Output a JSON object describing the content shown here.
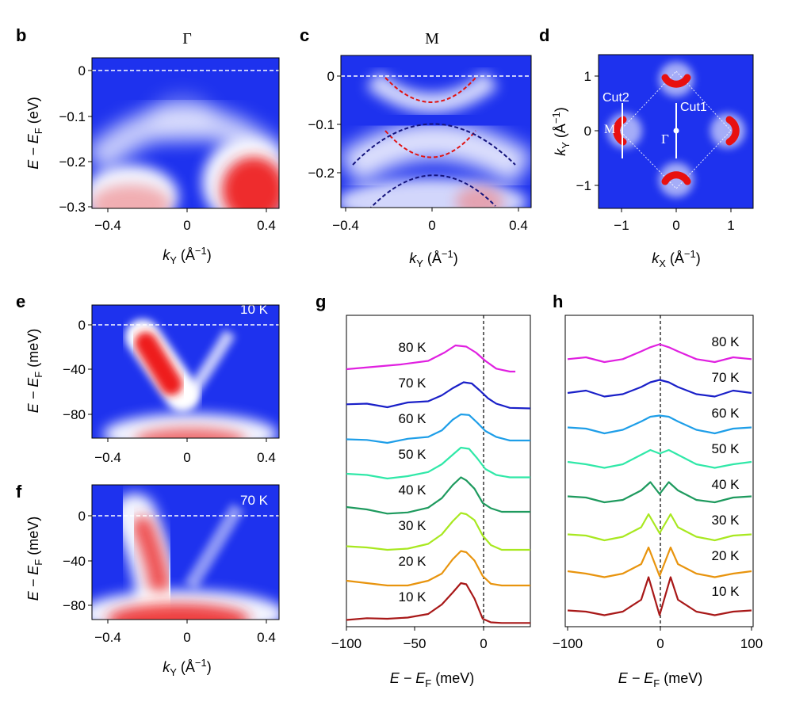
{
  "colors": {
    "blue": "#1e32ee",
    "white": "#ffffff",
    "red": "#ee1e1e",
    "axis": "#000000",
    "band_red": "#e01414",
    "band_blue": "#14147d",
    "dashed": "#ffffff"
  },
  "panels": {
    "b": {
      "letter": "b",
      "top_label": "Γ",
      "ylabel": "E − E",
      "ylabel_sub": "F",
      "ylabel_unit": " (eV)",
      "xlabel": "k",
      "xlabel_sub": "Y",
      "xlabel_unit": " (Å",
      "xlabel_sup": "−1",
      "xlabel_close": ")",
      "yticks": [
        "0",
        "−0.1",
        "−0.2",
        "−0.3"
      ],
      "xticks": [
        "−0.4",
        "0",
        "0.4"
      ]
    },
    "c": {
      "letter": "c",
      "top_label": "M",
      "yticks": [
        "0",
        "−0.1",
        "−0.2"
      ],
      "xticks": [
        "−0.4",
        "0",
        "0.4"
      ],
      "xlabel": "k",
      "xlabel_sub": "Y",
      "xlabel_unit": " (Å",
      "xlabel_sup": "−1",
      "xlabel_close": ")"
    },
    "d": {
      "letter": "d",
      "cut1": "Cut1",
      "cut2": "Cut2",
      "gamma": "Γ",
      "m": "M",
      "ylabel": "k",
      "ylabel_sub": "Y",
      "ylabel_unit": " (Å",
      "ylabel_sup": "−1",
      "ylabel_close": ")",
      "xlabel": "k",
      "xlabel_sub": "X",
      "xlabel_unit": " (Å",
      "xlabel_sup": "−1",
      "xlabel_close": ")",
      "xticks": [
        "−1",
        "0",
        "1"
      ],
      "yticks": [
        "1",
        "0",
        "−1"
      ]
    },
    "e": {
      "letter": "e",
      "temp": "10 K",
      "yticks": [
        "0",
        "−40",
        "−80"
      ],
      "xticks": [
        "−0.4",
        "0",
        "0.4"
      ],
      "ylabel": "E − E",
      "ylabel_sub": "F",
      "ylabel_unit": " (meV)"
    },
    "f": {
      "letter": "f",
      "temp": "70 K",
      "yticks": [
        "0",
        "−40",
        "−80"
      ],
      "xticks": [
        "−0.4",
        "0",
        "0.4"
      ],
      "ylabel": "E − E",
      "ylabel_sub": "F",
      "ylabel_unit": " (meV)",
      "xlabel": "k",
      "xlabel_sub": "Y",
      "xlabel_unit": " (Å",
      "xlabel_sup": "−1",
      "xlabel_close": ")"
    },
    "g": {
      "letter": "g",
      "xticks": [
        "−100",
        "−50",
        "0"
      ],
      "xlabel": "E − E",
      "xlabel_sub": "F",
      "xlabel_unit": " (meV)"
    },
    "h": {
      "letter": "h",
      "xticks": [
        "−100",
        "0",
        "100"
      ],
      "xlabel": "E − E",
      "xlabel_sub": "F",
      "xlabel_unit": " (meV)"
    }
  },
  "chart_data": [
    {
      "panel": "g",
      "type": "line",
      "xlim": [
        -100,
        35
      ],
      "series": [
        {
          "name": "80 K",
          "color": "#e020e0",
          "points": [
            [
              -100,
              0.8
            ],
            [
              -80,
              1.2
            ],
            [
              -60,
              1.6
            ],
            [
              -40,
              2.2
            ],
            [
              -28,
              3.6
            ],
            [
              -20,
              4.8
            ],
            [
              -12,
              4.6
            ],
            [
              -5,
              3.6
            ],
            [
              2,
              2.2
            ],
            [
              10,
              0.9
            ],
            [
              20,
              0.4
            ],
            [
              24,
              0.4
            ]
          ]
        },
        {
          "name": "70 K",
          "color": "#1a20c8",
          "points": [
            [
              -100,
              0.9
            ],
            [
              -85,
              1.0
            ],
            [
              -70,
              0.4
            ],
            [
              -55,
              1.2
            ],
            [
              -40,
              1.4
            ],
            [
              -30,
              2.4
            ],
            [
              -22,
              3.6
            ],
            [
              -14,
              4.6
            ],
            [
              -8,
              4.4
            ],
            [
              -2,
              3.2
            ],
            [
              4,
              1.9
            ],
            [
              10,
              1.0
            ],
            [
              20,
              0.3
            ],
            [
              35,
              0.2
            ]
          ]
        },
        {
          "name": "60 K",
          "color": "#1e9ee8",
          "points": [
            [
              -100,
              1.0
            ],
            [
              -85,
              0.9
            ],
            [
              -70,
              0.4
            ],
            [
              -55,
              1.1
            ],
            [
              -40,
              1.4
            ],
            [
              -30,
              2.5
            ],
            [
              -22,
              4.3
            ],
            [
              -16,
              5.2
            ],
            [
              -10,
              5.1
            ],
            [
              -4,
              3.8
            ],
            [
              2,
              2.4
            ],
            [
              10,
              1.4
            ],
            [
              20,
              0.8
            ],
            [
              35,
              0.8
            ]
          ]
        },
        {
          "name": "50 K",
          "color": "#30e8a8",
          "points": [
            [
              -100,
              1.2
            ],
            [
              -85,
              1.0
            ],
            [
              -70,
              0.4
            ],
            [
              -55,
              0.8
            ],
            [
              -40,
              1.5
            ],
            [
              -30,
              2.8
            ],
            [
              -22,
              4.4
            ],
            [
              -16,
              5.6
            ],
            [
              -10,
              5.4
            ],
            [
              -4,
              3.8
            ],
            [
              2,
              2.0
            ],
            [
              10,
              1.0
            ],
            [
              20,
              0.6
            ],
            [
              35,
              0.6
            ]
          ]
        },
        {
          "name": "40 K",
          "color": "#1e9a5e",
          "points": [
            [
              -100,
              1.6
            ],
            [
              -85,
              1.2
            ],
            [
              -70,
              0.5
            ],
            [
              -55,
              0.7
            ],
            [
              -40,
              1.5
            ],
            [
              -30,
              3.1
            ],
            [
              -22,
              5.3
            ],
            [
              -16,
              6.6
            ],
            [
              -12,
              6.1
            ],
            [
              -6,
              4.7
            ],
            [
              0,
              2.3
            ],
            [
              6,
              1.4
            ],
            [
              14,
              0.8
            ],
            [
              35,
              0.8
            ]
          ]
        },
        {
          "name": "30 K",
          "color": "#a8e820",
          "points": [
            [
              -100,
              1.0
            ],
            [
              -85,
              0.8
            ],
            [
              -70,
              0.4
            ],
            [
              -55,
              0.6
            ],
            [
              -40,
              1.4
            ],
            [
              -30,
              3.0
            ],
            [
              -22,
              5.2
            ],
            [
              -16,
              6.6
            ],
            [
              -12,
              6.4
            ],
            [
              -6,
              5.4
            ],
            [
              0,
              2.8
            ],
            [
              6,
              1.2
            ],
            [
              14,
              0.4
            ],
            [
              35,
              0.4
            ]
          ]
        },
        {
          "name": "20 K",
          "color": "#e8940e",
          "points": [
            [
              -100,
              1.2
            ],
            [
              -85,
              0.8
            ],
            [
              -70,
              0.4
            ],
            [
              -55,
              0.4
            ],
            [
              -40,
              1.2
            ],
            [
              -30,
              2.4
            ],
            [
              -22,
              4.8
            ],
            [
              -16,
              6.2
            ],
            [
              -12,
              6.0
            ],
            [
              -6,
              4.6
            ],
            [
              0,
              2.0
            ],
            [
              6,
              0.7
            ],
            [
              14,
              0.4
            ],
            [
              35,
              0.4
            ]
          ]
        },
        {
          "name": "10 K",
          "color": "#a81818",
          "points": [
            [
              -100,
              0.6
            ],
            [
              -85,
              0.9
            ],
            [
              -70,
              0.8
            ],
            [
              -55,
              1.0
            ],
            [
              -40,
              1.6
            ],
            [
              -30,
              3.2
            ],
            [
              -22,
              5.2
            ],
            [
              -16,
              6.8
            ],
            [
              -12,
              6.6
            ],
            [
              -6,
              4.2
            ],
            [
              0,
              0.8
            ],
            [
              6,
              0.2
            ],
            [
              14,
              0.1
            ],
            [
              35,
              0.1
            ]
          ]
        }
      ]
    },
    {
      "panel": "h",
      "type": "line",
      "xlim": [
        -100,
        100
      ],
      "series": [
        {
          "name": "80 K",
          "color": "#e020e0",
          "points": [
            [
              -100,
              1.3
            ],
            [
              -80,
              1.6
            ],
            [
              -60,
              0.8
            ],
            [
              -40,
              1.3
            ],
            [
              -20,
              2.6
            ],
            [
              -10,
              3.3
            ],
            [
              0,
              3.8
            ],
            [
              10,
              3.3
            ],
            [
              20,
              2.6
            ],
            [
              40,
              1.3
            ],
            [
              60,
              0.8
            ],
            [
              80,
              1.6
            ],
            [
              100,
              1.3
            ]
          ]
        },
        {
          "name": "70 K",
          "color": "#1a20c8",
          "points": [
            [
              -100,
              1.6
            ],
            [
              -80,
              2.0
            ],
            [
              -60,
              1.0
            ],
            [
              -40,
              1.4
            ],
            [
              -20,
              2.6
            ],
            [
              -10,
              3.4
            ],
            [
              0,
              3.8
            ],
            [
              10,
              3.4
            ],
            [
              20,
              2.6
            ],
            [
              40,
              1.4
            ],
            [
              60,
              1.0
            ],
            [
              80,
              2.0
            ],
            [
              100,
              1.6
            ]
          ]
        },
        {
          "name": "60 K",
          "color": "#1e9ee8",
          "points": [
            [
              -100,
              1.8
            ],
            [
              -80,
              1.6
            ],
            [
              -60,
              0.8
            ],
            [
              -40,
              1.4
            ],
            [
              -20,
              2.8
            ],
            [
              -10,
              3.6
            ],
            [
              0,
              3.8
            ],
            [
              10,
              3.6
            ],
            [
              20,
              2.8
            ],
            [
              40,
              1.4
            ],
            [
              60,
              0.8
            ],
            [
              80,
              1.6
            ],
            [
              100,
              1.8
            ]
          ]
        },
        {
          "name": "50 K",
          "color": "#30e8a8",
          "points": [
            [
              -100,
              2.0
            ],
            [
              -80,
              1.6
            ],
            [
              -60,
              1.0
            ],
            [
              -40,
              1.6
            ],
            [
              -20,
              3.2
            ],
            [
              -10,
              4.0
            ],
            [
              0,
              3.4
            ],
            [
              10,
              4.0
            ],
            [
              20,
              3.2
            ],
            [
              40,
              1.6
            ],
            [
              60,
              1.0
            ],
            [
              80,
              1.6
            ],
            [
              100,
              2.0
            ]
          ]
        },
        {
          "name": "40 K",
          "color": "#1e9a5e",
          "points": [
            [
              -100,
              2.2
            ],
            [
              -80,
              2.0
            ],
            [
              -60,
              1.2
            ],
            [
              -40,
              1.6
            ],
            [
              -20,
              3.2
            ],
            [
              -10,
              4.6
            ],
            [
              0,
              2.6
            ],
            [
              10,
              4.6
            ],
            [
              20,
              3.2
            ],
            [
              40,
              1.6
            ],
            [
              60,
              1.2
            ],
            [
              80,
              2.0
            ],
            [
              100,
              2.2
            ]
          ]
        },
        {
          "name": "30 K",
          "color": "#a8e820",
          "points": [
            [
              -100,
              1.8
            ],
            [
              -80,
              1.6
            ],
            [
              -60,
              0.8
            ],
            [
              -40,
              1.4
            ],
            [
              -20,
              3.0
            ],
            [
              -12,
              5.2
            ],
            [
              0,
              2.0
            ],
            [
              12,
              5.2
            ],
            [
              20,
              3.0
            ],
            [
              40,
              1.4
            ],
            [
              60,
              0.8
            ],
            [
              80,
              1.6
            ],
            [
              100,
              1.8
            ]
          ]
        },
        {
          "name": "20 K",
          "color": "#e8940e",
          "points": [
            [
              -100,
              1.6
            ],
            [
              -80,
              1.2
            ],
            [
              -60,
              0.6
            ],
            [
              -40,
              1.2
            ],
            [
              -20,
              2.8
            ],
            [
              -12,
              5.6
            ],
            [
              0,
              0.8
            ],
            [
              12,
              5.6
            ],
            [
              20,
              2.8
            ],
            [
              40,
              1.2
            ],
            [
              60,
              0.6
            ],
            [
              80,
              1.2
            ],
            [
              100,
              1.6
            ]
          ]
        },
        {
          "name": "10 K",
          "color": "#a81818",
          "points": [
            [
              -100,
              1.0
            ],
            [
              -80,
              0.8
            ],
            [
              -60,
              0.2
            ],
            [
              -40,
              0.8
            ],
            [
              -20,
              2.8
            ],
            [
              -12,
              6.6
            ],
            [
              0,
              0.2
            ],
            [
              12,
              6.6
            ],
            [
              20,
              2.8
            ],
            [
              40,
              0.8
            ],
            [
              60,
              0.2
            ],
            [
              80,
              0.8
            ],
            [
              100,
              1.0
            ]
          ]
        }
      ]
    }
  ]
}
